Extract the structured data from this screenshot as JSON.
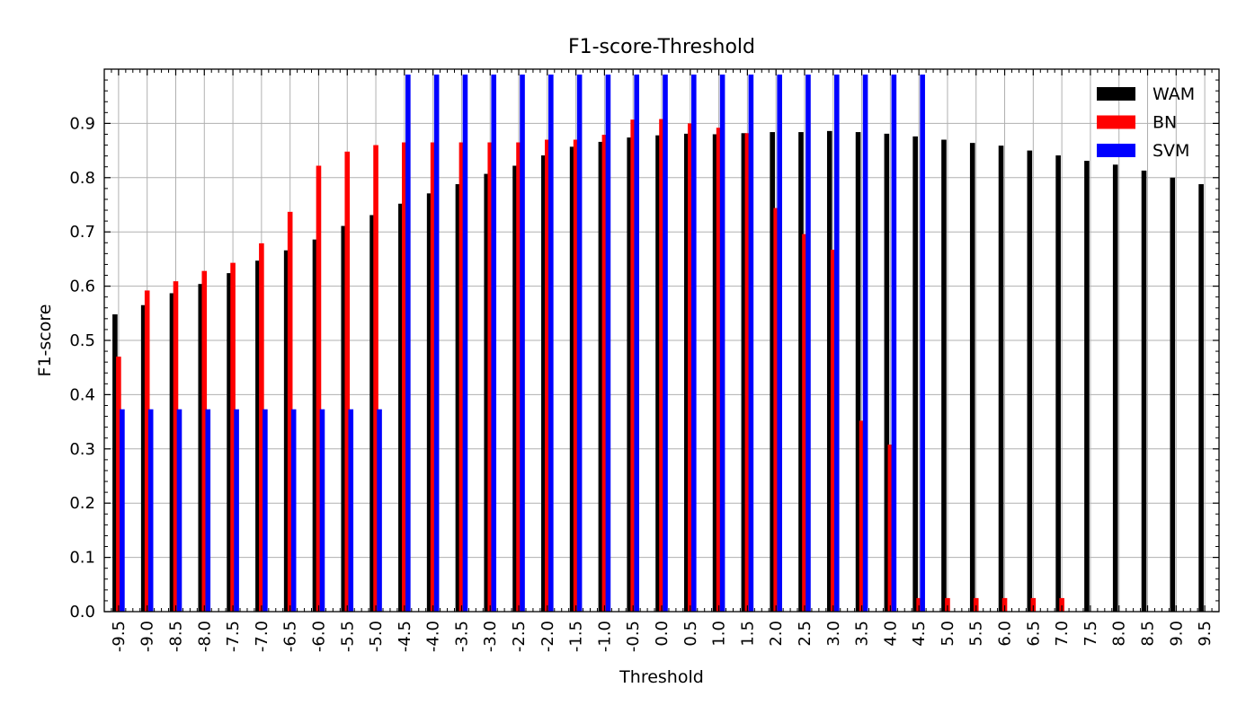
{
  "chart_data": {
    "type": "bar",
    "title": "F1-score-Threshold",
    "xlabel": "Threshold",
    "ylabel": "F1-score",
    "ylim": [
      0,
      1.0
    ],
    "yticks": [
      "0.0",
      "0.1",
      "0.2",
      "0.3",
      "0.4",
      "0.5",
      "0.6",
      "0.7",
      "0.8",
      "0.9"
    ],
    "grid": true,
    "legend_position": "top-right",
    "categories": [
      "-9.5",
      "-9.0",
      "-8.5",
      "-8.0",
      "-7.5",
      "-7.0",
      "-6.5",
      "-6.0",
      "-5.5",
      "-5.0",
      "-4.5",
      "-4.0",
      "-3.5",
      "-3.0",
      "-2.5",
      "-2.0",
      "-1.5",
      "-1.0",
      "-0.5",
      "0.0",
      "0.5",
      "1.0",
      "1.5",
      "2.0",
      "2.5",
      "3.0",
      "3.5",
      "4.0",
      "4.5",
      "5.0",
      "5.5",
      "6.0",
      "6.5",
      "7.0",
      "7.5",
      "8.0",
      "8.5",
      "9.0",
      "9.5"
    ],
    "series": [
      {
        "name": "WAM",
        "color": "#000000",
        "values": [
          0.548,
          0.565,
          0.587,
          0.604,
          0.624,
          0.647,
          0.666,
          0.686,
          0.711,
          0.731,
          0.752,
          0.771,
          0.788,
          0.807,
          0.822,
          0.841,
          0.857,
          0.866,
          0.874,
          0.878,
          0.881,
          0.88,
          0.882,
          0.884,
          0.884,
          0.886,
          0.884,
          0.881,
          0.876,
          0.87,
          0.864,
          0.859,
          0.85,
          0.841,
          0.831,
          0.824,
          0.813,
          0.8,
          0.788
        ]
      },
      {
        "name": "BN",
        "color": "#ff0000",
        "values": [
          0.47,
          0.592,
          0.609,
          0.628,
          0.643,
          0.679,
          0.737,
          0.822,
          0.848,
          0.86,
          0.865,
          0.865,
          0.865,
          0.865,
          0.865,
          0.87,
          0.87,
          0.879,
          0.907,
          0.908,
          0.9,
          0.892,
          0.882,
          0.744,
          0.696,
          0.667,
          0.352,
          0.308,
          0.025,
          0.025,
          0.025,
          0.025,
          0.025,
          0.025,
          null,
          null,
          null,
          null,
          null
        ]
      },
      {
        "name": "SVM",
        "color": "#0000ff",
        "values": [
          0.373,
          0.373,
          0.373,
          0.373,
          0.373,
          0.373,
          0.373,
          0.373,
          0.373,
          0.373,
          0.99,
          0.99,
          0.99,
          0.99,
          0.99,
          0.99,
          0.99,
          0.99,
          0.99,
          0.99,
          0.99,
          0.99,
          0.99,
          0.99,
          0.99,
          0.99,
          0.99,
          0.99,
          0.99,
          null,
          null,
          null,
          null,
          null,
          null,
          null,
          null,
          null,
          null
        ]
      }
    ]
  }
}
